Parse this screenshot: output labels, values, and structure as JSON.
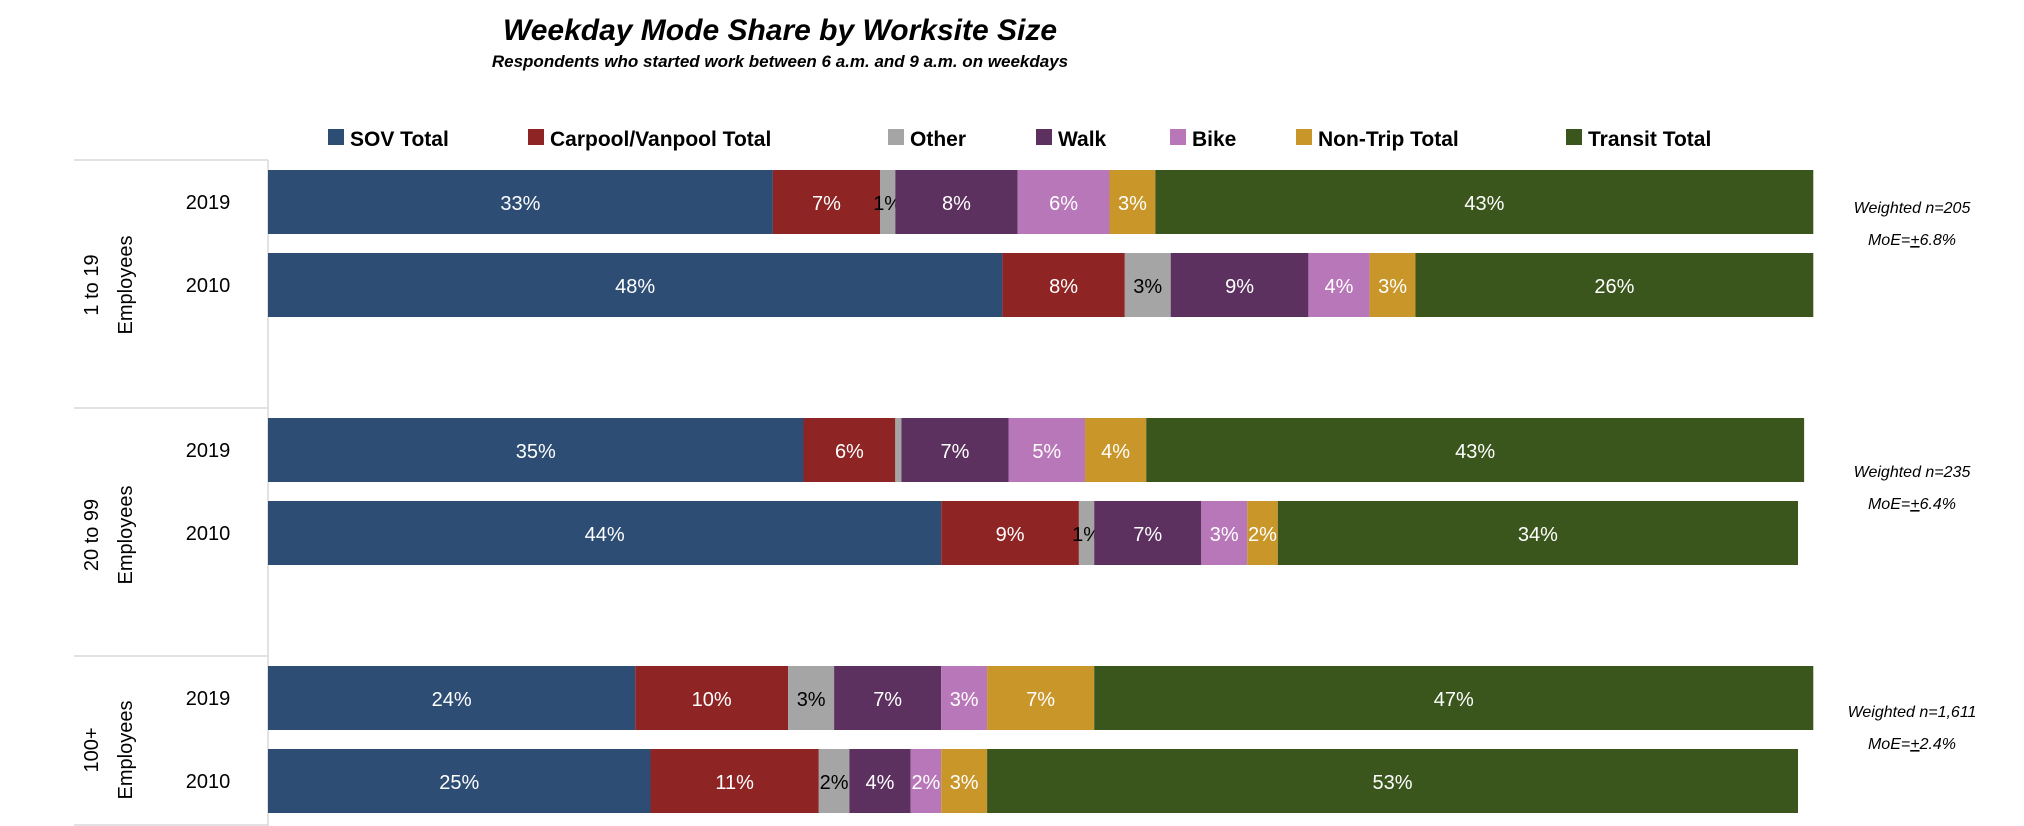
{
  "chart_data": {
    "type": "bar",
    "orientation": "horizontal",
    "stacked": true,
    "title": "Weekday Mode Share by Worksite Size",
    "subtitle": "Respondents who started work between 6 a.m. and 9 a.m. on weekdays",
    "legend_position": "top",
    "grid": false,
    "series": [
      {
        "name": "SOV Total",
        "color": "#2e4d74",
        "label_color": "#ffffff"
      },
      {
        "name": "Carpool/Vanpool Total",
        "color": "#8e2524",
        "label_color": "#ffffff"
      },
      {
        "name": "Other",
        "color": "#a5a5a5",
        "label_color": "#000000"
      },
      {
        "name": "Walk",
        "color": "#5c3160",
        "label_color": "#ffffff"
      },
      {
        "name": "Bike",
        "color": "#b877b8",
        "label_color": "#ffffff"
      },
      {
        "name": "Non-Trip Total",
        "color": "#c9962a",
        "label_color": "#ffffff"
      },
      {
        "name": "Transit Total",
        "color": "#3a561d",
        "label_color": "#ffffff"
      }
    ],
    "groups": [
      {
        "label_line1": "1 to 19",
        "label_line2": "Employees",
        "note_line1": "Weighted n=205",
        "note_moe_prefix": "MoE=",
        "note_moe_pm": "+",
        "note_moe_value": "6.8%",
        "rows": [
          {
            "year": "2019",
            "values": [
              33,
              7,
              1,
              8,
              6,
              3,
              43
            ],
            "labels": [
              "33%",
              "7%",
              "1%",
              "8%",
              "6%",
              "3%",
              "43%"
            ]
          },
          {
            "year": "2010",
            "values": [
              48,
              8,
              3,
              9,
              4,
              3,
              26
            ],
            "labels": [
              "48%",
              "8%",
              "3%",
              "9%",
              "4%",
              "3%",
              "26%"
            ]
          }
        ]
      },
      {
        "label_line1": "20 to 99",
        "label_line2": "Employees",
        "note_line1": "Weighted n=235",
        "note_moe_prefix": "MoE=",
        "note_moe_pm": "+",
        "note_moe_value": "6.4%",
        "rows": [
          {
            "year": "2019",
            "values": [
              35,
              6,
              0.4,
              7,
              5,
              4,
              43
            ],
            "labels": [
              "35%",
              "6%",
              "",
              "7%",
              "5%",
              "4%",
              "43%"
            ]
          },
          {
            "year": "2010",
            "values": [
              44,
              9,
              1,
              7,
              3,
              2,
              34
            ],
            "labels": [
              "44%",
              "9%",
              "1%",
              "7%",
              "3%",
              "2%",
              "34%"
            ]
          }
        ]
      },
      {
        "label_line1": "100+",
        "label_line2": "Employees",
        "note_line1": "Weighted n=1,611",
        "note_moe_prefix": "MoE=",
        "note_moe_pm": "+",
        "note_moe_value": "2.4%",
        "rows": [
          {
            "year": "2019",
            "values": [
              24,
              10,
              3,
              7,
              3,
              7,
              47
            ],
            "labels": [
              "24%",
              "10%",
              "3%",
              "7%",
              "3%",
              "7%",
              "47%"
            ]
          },
          {
            "year": "2010",
            "values": [
              25,
              11,
              2,
              4,
              2,
              3,
              53
            ],
            "labels": [
              "25%",
              "11%",
              "2%",
              "4%",
              "2%",
              "3%",
              "53%"
            ]
          }
        ]
      }
    ]
  }
}
